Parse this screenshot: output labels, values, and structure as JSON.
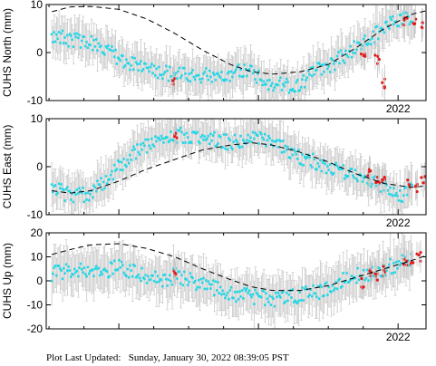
{
  "footer": {
    "label": "Plot Last Updated:",
    "timestamp": "Sunday, January 30, 2022 08:39:05 PST"
  },
  "colors": {
    "main_points": "#22d8e8",
    "recent_points": "#e01a1a",
    "error_bars": "#c8c8c8",
    "model_curve": "#000000"
  },
  "chart_data": [
    {
      "type": "scatter",
      "title": "",
      "xlabel": "",
      "ylabel": "CUHS North (mm)",
      "x_range": [
        2019.48,
        2022.2
      ],
      "ylim": [
        -10,
        10
      ],
      "yticks": [
        -10,
        0,
        10
      ],
      "xtick_labels": [
        {
          "x": 2022.0,
          "label": "2022"
        }
      ],
      "grid": false,
      "legend": "none",
      "series": [
        {
          "role": "observations",
          "x": [
            2019.52,
            2019.6,
            2019.7,
            2019.8,
            2019.9,
            2020.0,
            2020.1,
            2020.2,
            2020.3,
            2020.4,
            2020.5,
            2020.6,
            2020.7,
            2020.8,
            2020.9,
            2021.0,
            2021.1,
            2021.2,
            2021.3,
            2021.4,
            2021.5,
            2021.6,
            2021.7,
            2021.8,
            2021.9,
            2022.0,
            2022.1
          ],
          "y": [
            3.5,
            3.0,
            2.5,
            2.0,
            0.5,
            -1.0,
            -2.5,
            -3.5,
            -4.0,
            -4.5,
            -5.0,
            -5.0,
            -4.5,
            -4.5,
            -3.5,
            -5.0,
            -6.5,
            -7.0,
            -6.5,
            -4.0,
            -3.0,
            -1.0,
            1.0,
            3.0,
            5.0,
            7.0,
            7.5
          ],
          "error": 3.5
        },
        {
          "role": "recent",
          "x": [
            2020.4,
            2021.75,
            2021.85,
            2021.9,
            2022.05,
            2022.12,
            2022.18
          ],
          "y": [
            -6.0,
            -0.5,
            -1.5,
            -6.5,
            6.5,
            6.0,
            5.5
          ],
          "error": 3.0
        },
        {
          "role": "model_curve",
          "x": [
            2019.52,
            2019.65,
            2019.8,
            2020.0,
            2020.2,
            2020.4,
            2020.6,
            2020.8,
            2020.95,
            2021.1,
            2021.3,
            2021.5,
            2021.7,
            2021.9,
            2022.1,
            2022.2
          ],
          "y": [
            8.5,
            9.5,
            9.6,
            9.0,
            7.0,
            4.0,
            0.5,
            -2.5,
            -4.0,
            -4.5,
            -4.0,
            -2.5,
            1.0,
            5.0,
            8.0,
            8.7
          ]
        }
      ]
    },
    {
      "type": "scatter",
      "title": "",
      "xlabel": "",
      "ylabel": "CUHS East (mm)",
      "x_range": [
        2019.48,
        2022.2
      ],
      "ylim": [
        -10,
        10
      ],
      "yticks": [
        -10,
        0,
        10
      ],
      "xtick_labels": [
        {
          "x": 2022.0,
          "label": "2022"
        }
      ],
      "grid": false,
      "legend": "none",
      "series": [
        {
          "role": "observations",
          "x": [
            2019.52,
            2019.6,
            2019.7,
            2019.8,
            2019.9,
            2020.0,
            2020.1,
            2020.2,
            2020.3,
            2020.4,
            2020.5,
            2020.6,
            2020.7,
            2020.8,
            2020.9,
            2021.0,
            2021.1,
            2021.2,
            2021.3,
            2021.4,
            2021.5,
            2021.6,
            2021.7,
            2021.8,
            2021.9,
            2022.0,
            2022.1
          ],
          "y": [
            -3.5,
            -5.5,
            -6.0,
            -5.5,
            -3.0,
            0.0,
            2.5,
            4.5,
            6.0,
            6.5,
            6.5,
            6.0,
            5.5,
            5.0,
            5.5,
            6.0,
            5.0,
            3.5,
            2.0,
            1.0,
            0.0,
            -1.0,
            -2.0,
            -3.0,
            -4.5,
            -6.5,
            -4.0
          ],
          "error": 3.5
        },
        {
          "role": "recent",
          "x": [
            2020.4,
            2021.8,
            2021.85,
            2021.9,
            2022.08,
            2022.14,
            2022.18
          ],
          "y": [
            6.5,
            -1.5,
            -2.5,
            -3.0,
            -3.5,
            -4.5,
            -3.0
          ],
          "error": 3.0
        },
        {
          "role": "model_curve",
          "x": [
            2019.52,
            2019.65,
            2019.8,
            2020.0,
            2020.2,
            2020.4,
            2020.6,
            2020.8,
            2020.95,
            2021.1,
            2021.3,
            2021.5,
            2021.7,
            2021.9,
            2022.1,
            2022.2
          ],
          "y": [
            -5.0,
            -5.5,
            -5.0,
            -3.0,
            -0.5,
            1.5,
            3.5,
            4.5,
            5.0,
            4.5,
            3.0,
            1.0,
            -1.5,
            -3.5,
            -4.3,
            -4.0
          ]
        }
      ]
    },
    {
      "type": "scatter",
      "title": "",
      "xlabel": "",
      "ylabel": "CUHS Up (mm)",
      "x_range": [
        2019.48,
        2022.2
      ],
      "ylim": [
        -20,
        20
      ],
      "yticks": [
        -20,
        -10,
        0,
        10,
        20
      ],
      "xtick_labels": [
        {
          "x": 2022.0,
          "label": "2022"
        }
      ],
      "grid": false,
      "legend": "none",
      "series": [
        {
          "role": "observations",
          "x": [
            2019.52,
            2019.6,
            2019.7,
            2019.8,
            2019.9,
            2020.0,
            2020.1,
            2020.2,
            2020.3,
            2020.4,
            2020.5,
            2020.6,
            2020.7,
            2020.8,
            2020.9,
            2021.0,
            2021.1,
            2021.2,
            2021.3,
            2021.4,
            2021.5,
            2021.6,
            2021.7,
            2021.8,
            2021.9,
            2022.0,
            2022.1
          ],
          "y": [
            3.0,
            4.0,
            5.0,
            3.0,
            4.0,
            6.0,
            4.0,
            2.0,
            0.0,
            2.0,
            1.0,
            -2.0,
            -3.0,
            -5.0,
            -6.0,
            -7.0,
            -8.0,
            -7.0,
            -6.0,
            -5.0,
            -3.0,
            0.0,
            2.0,
            3.0,
            5.0,
            7.0,
            9.0
          ],
          "error": 8.0
        },
        {
          "role": "recent",
          "x": [
            2020.4,
            2021.75,
            2021.8,
            2021.85,
            2021.9,
            2022.05,
            2022.1,
            2022.15
          ],
          "y": [
            4.0,
            -1.0,
            3.0,
            2.0,
            4.0,
            7.0,
            8.0,
            10.0
          ],
          "error": 5.0
        },
        {
          "role": "model_curve",
          "x": [
            2019.52,
            2019.65,
            2019.8,
            2020.0,
            2020.2,
            2020.4,
            2020.6,
            2020.8,
            2020.95,
            2021.1,
            2021.3,
            2021.5,
            2021.7,
            2021.9,
            2022.1,
            2022.2
          ],
          "y": [
            11.0,
            13.0,
            15.0,
            15.5,
            13.5,
            10.0,
            5.0,
            0.5,
            -2.5,
            -4.0,
            -4.0,
            -2.0,
            1.5,
            5.0,
            8.5,
            10.5
          ]
        }
      ]
    }
  ]
}
